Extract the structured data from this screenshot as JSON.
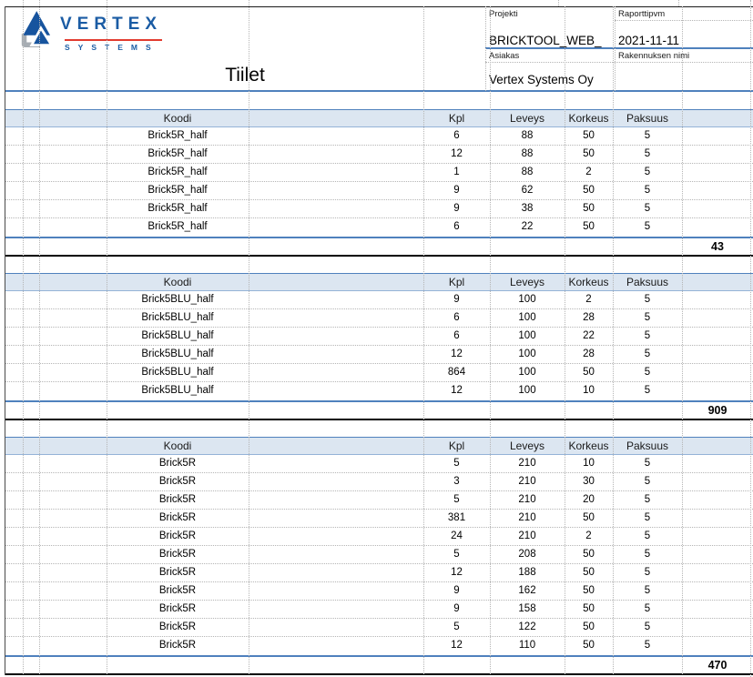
{
  "logo": {
    "brand": "VERTEX",
    "sub": "SYSTEMS"
  },
  "title": "Tiilet",
  "meta": {
    "projekti_label": "Projekti",
    "projekti_value": "BRICKTOOL_WEB_",
    "raporttipvm_label": "Raporttipvm",
    "raporttipvm_value": "2021-11-11",
    "asiakas_label": "Asiakas",
    "asiakas_value": "Vertex Systems Oy",
    "rakennuksen_nimi_label": "Rakennuksen nimi"
  },
  "columns": [
    "Koodi",
    "Kpl",
    "Leveys",
    "Korkeus",
    "Paksuus"
  ],
  "tables": [
    {
      "rows": [
        [
          "Brick5R_half",
          "6",
          "88",
          "50",
          "5"
        ],
        [
          "Brick5R_half",
          "12",
          "88",
          "50",
          "5"
        ],
        [
          "Brick5R_half",
          "1",
          "88",
          "2",
          "5"
        ],
        [
          "Brick5R_half",
          "9",
          "62",
          "50",
          "5"
        ],
        [
          "Brick5R_half",
          "9",
          "38",
          "50",
          "5"
        ],
        [
          "Brick5R_half",
          "6",
          "22",
          "50",
          "5"
        ]
      ],
      "total": "43"
    },
    {
      "rows": [
        [
          "Brick5BLU_half",
          "9",
          "100",
          "2",
          "5"
        ],
        [
          "Brick5BLU_half",
          "6",
          "100",
          "28",
          "5"
        ],
        [
          "Brick5BLU_half",
          "6",
          "100",
          "22",
          "5"
        ],
        [
          "Brick5BLU_half",
          "12",
          "100",
          "28",
          "5"
        ],
        [
          "Brick5BLU_half",
          "864",
          "100",
          "50",
          "5"
        ],
        [
          "Brick5BLU_half",
          "12",
          "100",
          "10",
          "5"
        ]
      ],
      "total": "909"
    },
    {
      "rows": [
        [
          "Brick5R",
          "5",
          "210",
          "10",
          "5"
        ],
        [
          "Brick5R",
          "3",
          "210",
          "30",
          "5"
        ],
        [
          "Brick5R",
          "5",
          "210",
          "20",
          "5"
        ],
        [
          "Brick5R",
          "381",
          "210",
          "50",
          "5"
        ],
        [
          "Brick5R",
          "24",
          "210",
          "2",
          "5"
        ],
        [
          "Brick5R",
          "5",
          "208",
          "50",
          "5"
        ],
        [
          "Brick5R",
          "12",
          "188",
          "50",
          "5"
        ],
        [
          "Brick5R",
          "9",
          "162",
          "50",
          "5"
        ],
        [
          "Brick5R",
          "9",
          "158",
          "50",
          "5"
        ],
        [
          "Brick5R",
          "5",
          "122",
          "50",
          "5"
        ],
        [
          "Brick5R",
          "12",
          "110",
          "50",
          "5"
        ]
      ],
      "total": "470"
    }
  ],
  "colors": {
    "accent_blue": "#4f81bd",
    "band_fill": "#dce6f1",
    "band_border": "#95b3d7",
    "logo_blue": "#1b5ca4",
    "logo_red": "#e23b2e"
  }
}
